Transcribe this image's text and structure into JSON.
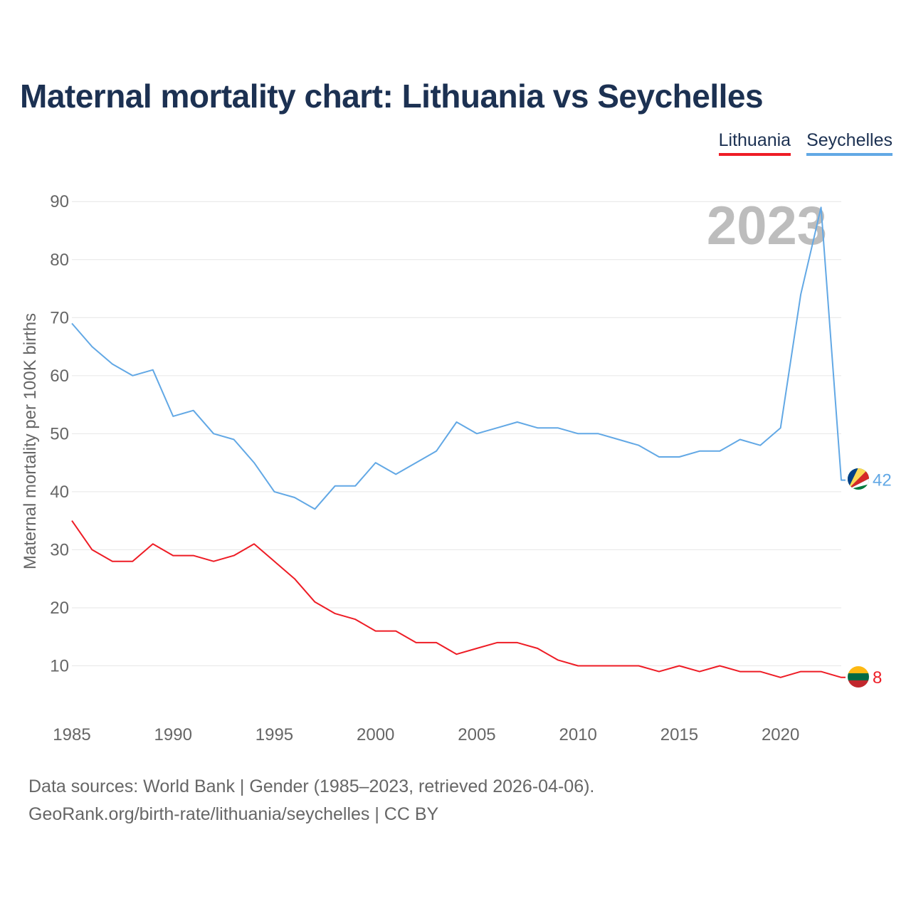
{
  "title": "Maternal mortality chart: Lithuania vs Seychelles",
  "legend": [
    {
      "label": "Lithuania",
      "color": "#ee1c25"
    },
    {
      "label": "Seychelles",
      "color": "#62a8e5"
    }
  ],
  "footer": {
    "line1": "Data sources: World Bank | Gender (1985–2023, retrieved 2026-04-06).",
    "line2": "GeoRank.org/birth-rate/lithuania/seychelles | CC BY"
  },
  "chart_data": {
    "type": "line",
    "title": "Maternal mortality chart: Lithuania vs Seychelles",
    "xlabel": "",
    "ylabel": "Maternal mortality per 100K births",
    "year_label": "2023",
    "xlim": [
      1985,
      2023
    ],
    "ylim": [
      0,
      90
    ],
    "xticks": [
      1985,
      1990,
      1995,
      2000,
      2005,
      2010,
      2015,
      2020
    ],
    "yticks": [
      10,
      20,
      30,
      40,
      50,
      60,
      70,
      80,
      90
    ],
    "grid": true,
    "legend_position": "top-right",
    "x": [
      1985,
      1986,
      1987,
      1988,
      1989,
      1990,
      1991,
      1992,
      1993,
      1994,
      1995,
      1996,
      1997,
      1998,
      1999,
      2000,
      2001,
      2002,
      2003,
      2004,
      2005,
      2006,
      2007,
      2008,
      2009,
      2010,
      2011,
      2012,
      2013,
      2014,
      2015,
      2016,
      2017,
      2018,
      2019,
      2020,
      2021,
      2022,
      2023
    ],
    "series": [
      {
        "name": "Lithuania",
        "color": "#ee1c25",
        "end_label": "8",
        "flag": "lithuania-flag",
        "values": [
          35,
          30,
          28,
          28,
          31,
          29,
          29,
          28,
          29,
          31,
          28,
          25,
          21,
          19,
          18,
          16,
          16,
          14,
          14,
          12,
          13,
          14,
          14,
          13,
          11,
          10,
          10,
          10,
          10,
          9,
          10,
          9,
          10,
          9,
          9,
          8,
          9,
          9,
          8
        ]
      },
      {
        "name": "Seychelles",
        "color": "#62a8e5",
        "end_label": "42",
        "flag": "seychelles-flag",
        "values": [
          69,
          65,
          62,
          60,
          61,
          53,
          54,
          50,
          49,
          45,
          40,
          39,
          37,
          41,
          41,
          45,
          43,
          45,
          47,
          52,
          50,
          51,
          52,
          51,
          51,
          50,
          50,
          49,
          48,
          46,
          46,
          47,
          47,
          49,
          48,
          51,
          74,
          89,
          42
        ]
      }
    ]
  }
}
